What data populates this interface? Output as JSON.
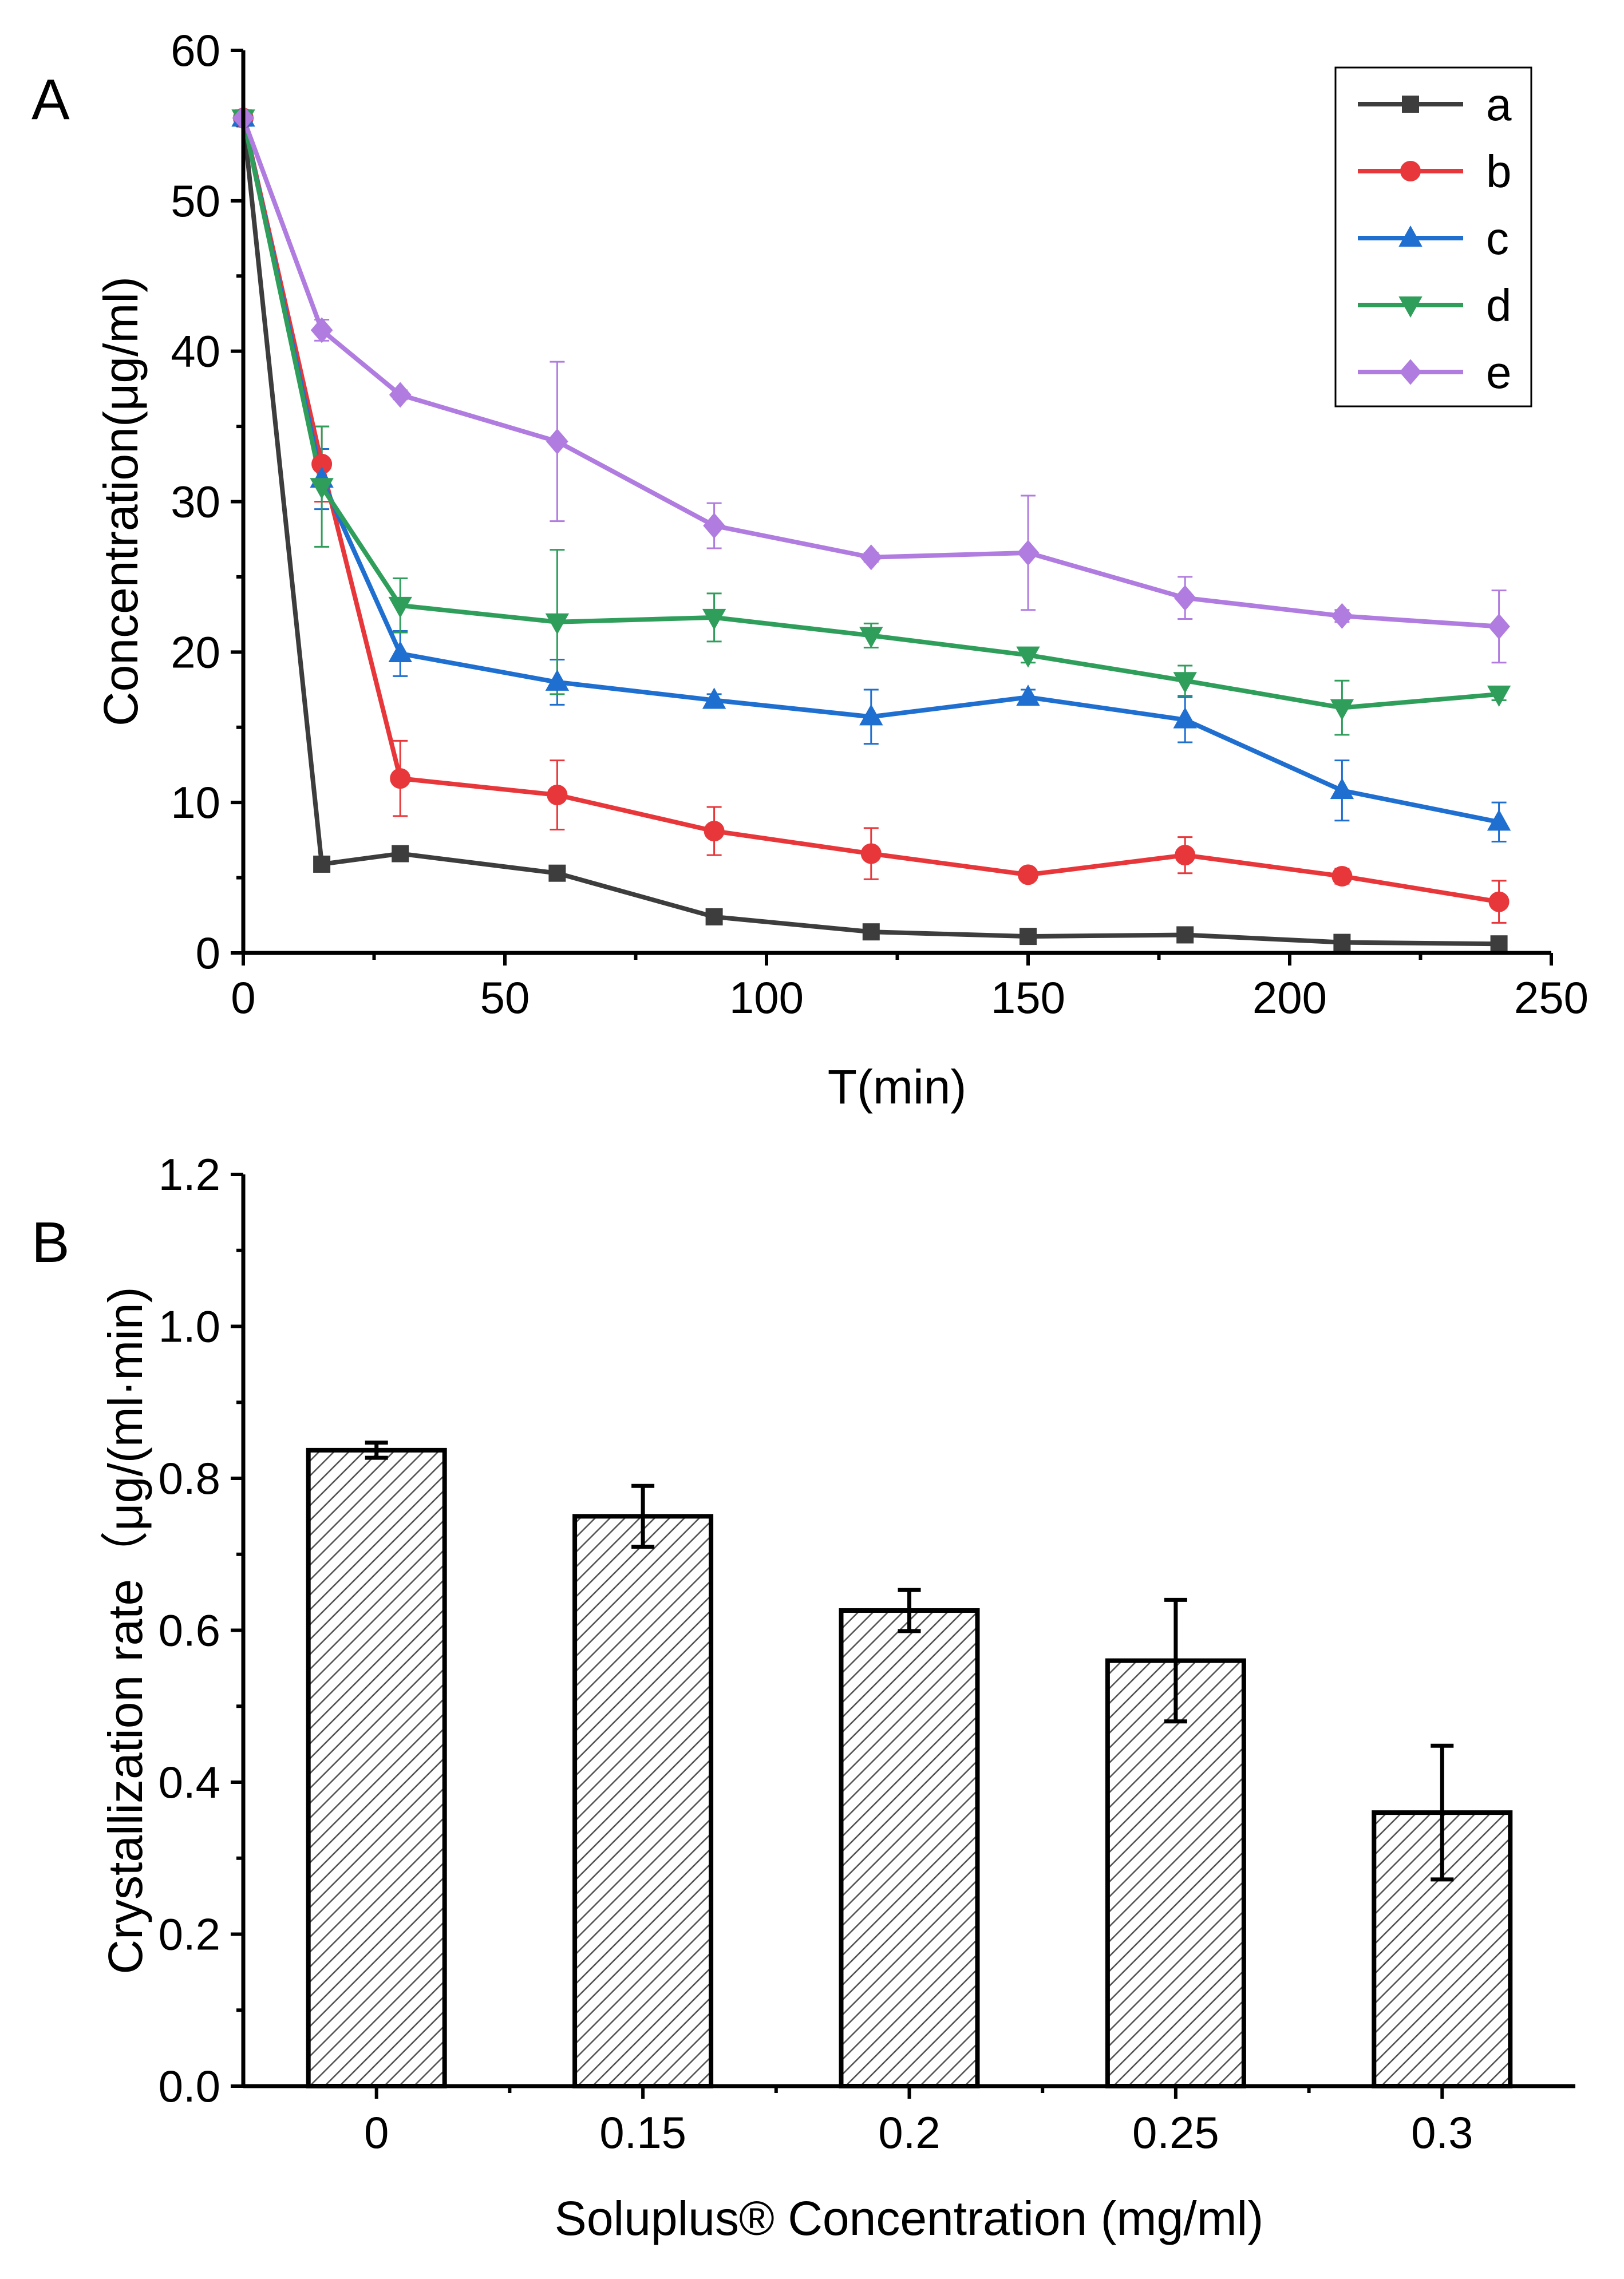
{
  "chart_data": [
    {
      "panel_label": "A",
      "type": "line",
      "xlabel": "T(min)",
      "ylabel": "Concentration(μg/ml)",
      "xlim": [
        0,
        250
      ],
      "ylim": [
        0,
        60
      ],
      "x_ticks": [
        "0",
        "50",
        "100",
        "150",
        "200",
        "250"
      ],
      "y_ticks": [
        "0",
        "10",
        "20",
        "30",
        "40",
        "50",
        "60"
      ],
      "legend_position": "top-right",
      "x": [
        0,
        15,
        30,
        60,
        90,
        120,
        150,
        180,
        210,
        240
      ],
      "series": [
        {
          "name": "a",
          "color": "#3d3d3d",
          "marker": "square",
          "values": [
            55.5,
            5.9,
            6.6,
            5.3,
            2.4,
            1.4,
            1.1,
            1.2,
            0.7,
            0.6
          ],
          "errors": [
            0,
            0.2,
            0.2,
            0.2,
            0.2,
            0.1,
            0.1,
            0.1,
            0.1,
            0.1
          ]
        },
        {
          "name": "b",
          "color": "#e8373a",
          "marker": "circle",
          "values": [
            55.5,
            32.5,
            11.6,
            10.5,
            8.1,
            6.6,
            5.2,
            6.5,
            5.1,
            3.4
          ],
          "errors": [
            0,
            2.5,
            2.5,
            2.3,
            1.6,
            1.7,
            0.4,
            1.2,
            0.5,
            1.4
          ]
        },
        {
          "name": "c",
          "color": "#1f6fd1",
          "marker": "triangle-up",
          "values": [
            55.5,
            31.5,
            19.9,
            18.0,
            16.8,
            15.7,
            17.0,
            15.5,
            10.8,
            8.7
          ],
          "errors": [
            0,
            2.0,
            1.5,
            1.5,
            0.4,
            1.8,
            0.5,
            1.5,
            2.0,
            1.3
          ]
        },
        {
          "name": "d",
          "color": "#2f9e5b",
          "marker": "triangle-down",
          "values": [
            55.5,
            31.0,
            23.1,
            22.0,
            22.3,
            21.1,
            19.8,
            18.1,
            16.3,
            17.2
          ],
          "errors": [
            0,
            4.0,
            1.8,
            4.8,
            1.6,
            0.8,
            0.5,
            1.0,
            1.8,
            0.4
          ]
        },
        {
          "name": "e",
          "color": "#b07ce0",
          "marker": "diamond",
          "values": [
            55.5,
            41.4,
            37.1,
            34.0,
            28.4,
            26.3,
            26.6,
            23.6,
            22.4,
            21.7
          ],
          "errors": [
            0,
            0.7,
            0.3,
            5.3,
            1.5,
            0.3,
            3.8,
            1.4,
            0.4,
            2.4
          ]
        }
      ]
    },
    {
      "panel_label": "B",
      "type": "bar",
      "xlabel": "Soluplus® Concentration (mg/ml)",
      "ylabel": "Crystallization rate（μg/(ml·min)",
      "ylim": [
        0,
        1.2
      ],
      "y_ticks": [
        "0.0",
        "0.2",
        "0.4",
        "0.6",
        "0.8",
        "1.0",
        "1.2"
      ],
      "categories": [
        "0",
        "0.15",
        "0.2",
        "0.25",
        "0.3"
      ],
      "values": [
        0.837,
        0.75,
        0.626,
        0.56,
        0.36
      ],
      "errors": [
        0.01,
        0.04,
        0.027,
        0.08,
        0.088
      ],
      "fill_pattern": "diagonal-hatch"
    }
  ]
}
